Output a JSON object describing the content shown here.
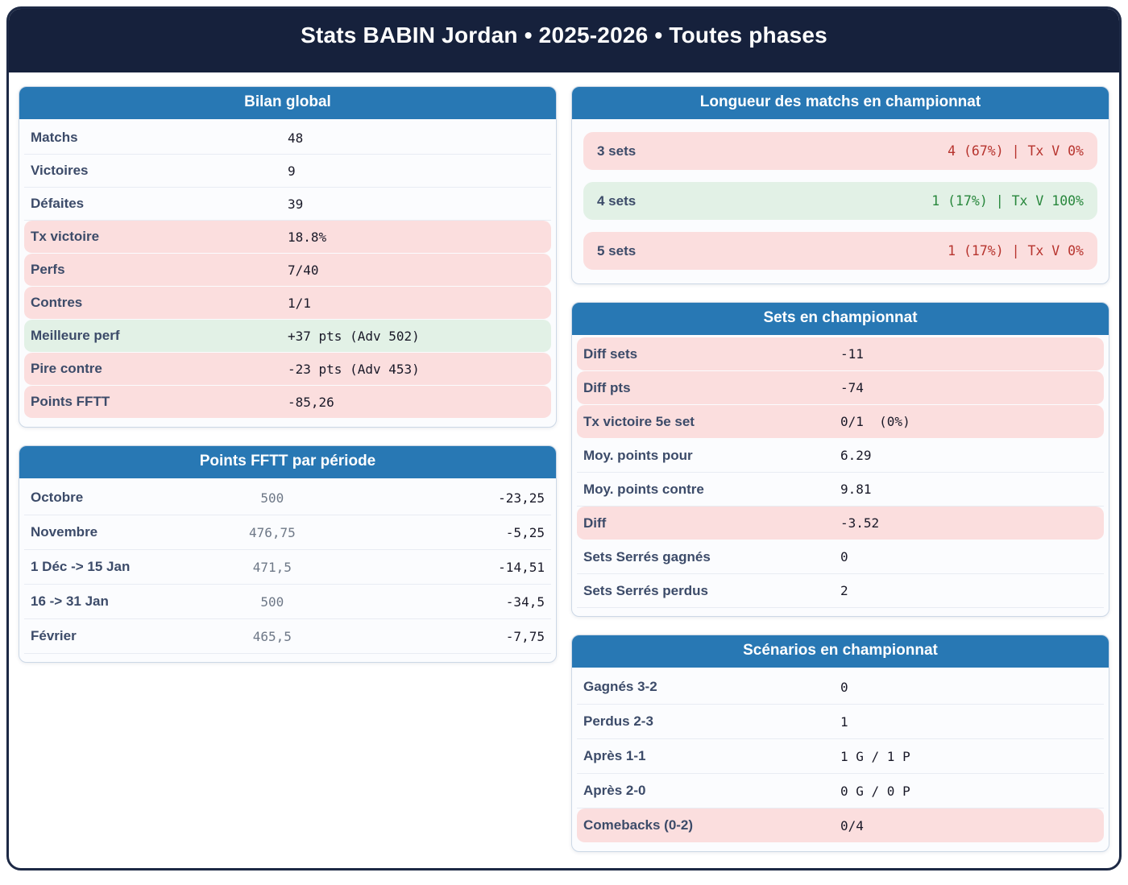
{
  "page": {
    "title": "Stats BABIN Jordan • 2025-2026 • Toutes phases"
  },
  "colors": {
    "page_border_navy": "#1d2945",
    "header_navy": "#16213c",
    "card_header_blue": "#2878b4",
    "negative_bg_pink": "#fbdede",
    "positive_bg_green": "#e2f1e6",
    "negative_text_red": "#b7342e",
    "positive_text_green": "#28873c",
    "label_slate": "#3c4b69"
  },
  "cards": {
    "bilan_global": {
      "title": "Bilan global",
      "rows": [
        {
          "label": "Matchs",
          "value": "48",
          "tone": "plain"
        },
        {
          "label": "Victoires",
          "value": "9",
          "tone": "plain"
        },
        {
          "label": "Défaites",
          "value": "39",
          "tone": "plain"
        },
        {
          "label": "Tx victoire",
          "value": "18.8%",
          "tone": "pink"
        },
        {
          "label": "Perfs",
          "value": "7/40",
          "tone": "pink"
        },
        {
          "label": "Contres",
          "value": "1/1",
          "tone": "pink"
        },
        {
          "label": "Meilleure perf",
          "value": "+37 pts (Adv 502)",
          "tone": "green"
        },
        {
          "label": "Pire contre",
          "value": "-23 pts (Adv 453)",
          "tone": "pink"
        },
        {
          "label": "Points FFTT",
          "value": "-85,26",
          "tone": "pink"
        }
      ]
    },
    "points_fftt_periode": {
      "title": "Points FFTT par période",
      "rows": [
        {
          "label": "Octobre",
          "mid": "500",
          "value": "-23,25"
        },
        {
          "label": "Novembre",
          "mid": "476,75",
          "value": "-5,25"
        },
        {
          "label": "1 Déc -> 15 Jan",
          "mid": "471,5",
          "value": "-14,51"
        },
        {
          "label": "16 -> 31 Jan",
          "mid": "500",
          "value": "-34,5"
        },
        {
          "label": "Février",
          "mid": "465,5",
          "value": "-7,75"
        }
      ]
    },
    "longueur_matchs": {
      "title": "Longueur des matchs en championnat",
      "rows": [
        {
          "label": "3 sets",
          "value": "4 (67%) | Tx V 0%",
          "tone": "pink"
        },
        {
          "label": "4 sets",
          "value": "1 (17%) | Tx V 100%",
          "tone": "green"
        },
        {
          "label": "5 sets",
          "value": "1 (17%) | Tx V 0%",
          "tone": "pink"
        }
      ]
    },
    "sets_championnat": {
      "title": "Sets en championnat",
      "rows": [
        {
          "label": "Diff sets",
          "value": "-11",
          "tone": "pink"
        },
        {
          "label": "Diff pts",
          "value": "-74",
          "tone": "pink"
        },
        {
          "label": "Tx victoire 5e set",
          "value": "0/1  (0%)",
          "tone": "pink"
        },
        {
          "label": "Moy. points pour",
          "value": "6.29",
          "tone": "plain"
        },
        {
          "label": "Moy. points contre",
          "value": "9.81",
          "tone": "plain"
        },
        {
          "label": "Diff",
          "value": "-3.52",
          "tone": "pink"
        },
        {
          "label": "Sets Serrés gagnés",
          "value": "0",
          "tone": "plain"
        },
        {
          "label": "Sets Serrés perdus",
          "value": "2",
          "tone": "plain"
        }
      ]
    },
    "scenarios_championnat": {
      "title": "Scénarios en championnat",
      "rows": [
        {
          "label": "Gagnés 3-2",
          "value": "0",
          "tone": "plain"
        },
        {
          "label": "Perdus 2-3",
          "value": "1",
          "tone": "plain"
        },
        {
          "label": "Après 1-1",
          "value": "1 G / 1 P",
          "tone": "plain"
        },
        {
          "label": "Après 2-0",
          "value": "0 G / 0 P",
          "tone": "plain"
        },
        {
          "label": "Comebacks (0-2)",
          "value": "0/4",
          "tone": "pink"
        }
      ]
    }
  }
}
